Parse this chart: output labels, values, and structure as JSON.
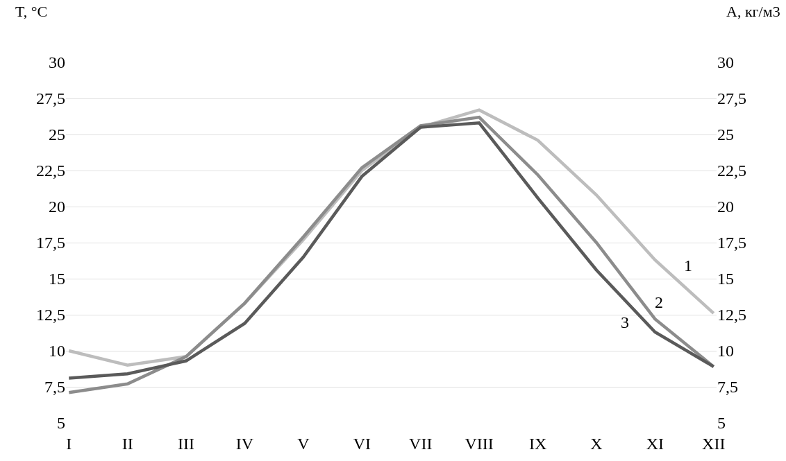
{
  "chart_data": {
    "type": "line",
    "ylabel": "T, °C",
    "y2label": "A, кг/м3",
    "categories": [
      "I",
      "II",
      "III",
      "IV",
      "V",
      "VI",
      "VII",
      "VIII",
      "IX",
      "X",
      "XI",
      "XII"
    ],
    "series": [
      {
        "name": "1",
        "color": "#bdbdbd",
        "values": [
          10.0,
          9.0,
          9.6,
          13.3,
          17.7,
          22.5,
          25.5,
          26.7,
          24.6,
          20.8,
          16.3,
          12.6
        ]
      },
      {
        "name": "2",
        "color": "#8c8c8c",
        "values": [
          7.1,
          7.7,
          9.6,
          13.3,
          17.9,
          22.7,
          25.6,
          26.2,
          22.2,
          17.5,
          12.2,
          8.9
        ]
      },
      {
        "name": "3",
        "color": "#5a5a5a",
        "values": [
          8.1,
          8.4,
          9.3,
          11.9,
          16.5,
          22.1,
          25.5,
          25.8,
          20.6,
          15.6,
          11.3,
          8.9
        ]
      }
    ],
    "ylim": [
      5,
      30
    ],
    "yticks": [
      {
        "value": 5,
        "label": "5"
      },
      {
        "value": 7.5,
        "label": "7,5"
      },
      {
        "value": 10,
        "label": "10"
      },
      {
        "value": 12.5,
        "label": "12,5"
      },
      {
        "value": 15,
        "label": "15"
      },
      {
        "value": 17.5,
        "label": "17,5"
      },
      {
        "value": 20,
        "label": "20"
      },
      {
        "value": 22.5,
        "label": "22,5"
      },
      {
        "value": 25,
        "label": "25"
      },
      {
        "value": 27.5,
        "label": "27,5"
      },
      {
        "value": 30,
        "label": "30"
      }
    ],
    "y2lim": [
      5,
      30
    ],
    "y2ticks": [
      {
        "value": 5,
        "label": "5"
      },
      {
        "value": 7.5,
        "label": "7,5"
      },
      {
        "value": 10,
        "label": "10"
      },
      {
        "value": 12.5,
        "label": "12,5"
      },
      {
        "value": 15,
        "label": "15"
      },
      {
        "value": 17.5,
        "label": "17,5"
      },
      {
        "value": 20,
        "label": "20"
      },
      {
        "value": 22.5,
        "label": "22,5"
      },
      {
        "value": 25,
        "label": "25"
      },
      {
        "value": 27.5,
        "label": "27,5"
      },
      {
        "value": 30,
        "label": "30"
      }
    ],
    "grid": "y",
    "legend": false,
    "marker": "none",
    "line_style": "solid"
  }
}
